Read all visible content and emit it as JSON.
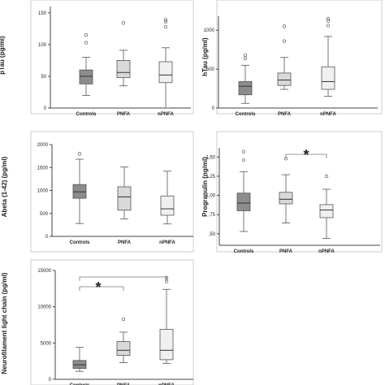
{
  "colors": {
    "frame": "#cccccc",
    "axis": "#444444",
    "whisker": "#555555",
    "box_stroke": "#555555",
    "box_fills": [
      "#8c8c8c",
      "#d9d9d9",
      "#f0f0f0"
    ],
    "bracket": "#777777"
  },
  "chart_data": [
    {
      "type": "box",
      "ylabel": "pTau (pg/ml)",
      "categories": [
        "Controls",
        "PNFA",
        "nPNFA"
      ],
      "ylim": [
        0,
        160
      ],
      "yticks": [
        0,
        50,
        100,
        150
      ],
      "ytick_labels": [
        "0",
        "50",
        "100",
        "150"
      ],
      "boxes": [
        {
          "whisker_low": 20,
          "q1": 38,
          "median": 50,
          "q3": 60,
          "whisker_high": 80,
          "outliers": [
            103,
            115
          ]
        },
        {
          "whisker_low": 35,
          "q1": 48,
          "median": 56,
          "q3": 75,
          "whisker_high": 91,
          "outliers": [
            134
          ]
        },
        {
          "whisker_low": 0,
          "q1": 40,
          "median": 52,
          "q3": 73,
          "whisker_high": 95,
          "outliers": [
            128,
            136,
            139
          ]
        }
      ]
    },
    {
      "type": "box",
      "ylabel": "hTau (pg/ml)",
      "categories": [
        "Controls",
        "PNFA",
        "nPNFA"
      ],
      "ylim": [
        0,
        1180
      ],
      "yticks": [
        0,
        500,
        1000
      ],
      "ytick_labels": [
        "0",
        "500",
        "1000"
      ],
      "boxes": [
        {
          "whisker_low": 60,
          "q1": 170,
          "median": 280,
          "q3": 340,
          "whisker_high": 550,
          "outliers": [
            640,
            680
          ]
        },
        {
          "whisker_low": 240,
          "q1": 290,
          "median": 360,
          "q3": 450,
          "whisker_high": 650,
          "outliers": [
            860,
            1050
          ]
        },
        {
          "whisker_low": 150,
          "q1": 240,
          "median": 340,
          "q3": 530,
          "whisker_high": 920,
          "outliers": [
            1060,
            1120,
            1150
          ]
        }
      ]
    },
    {
      "type": "box",
      "ylabel": "Abeta (1-42) (pg/ml)",
      "categories": [
        "Controls",
        "PNFA",
        "nPNFA"
      ],
      "ylim": [
        0,
        2000
      ],
      "yticks": [
        0,
        500,
        1000,
        1500,
        2000
      ],
      "ytick_labels": [
        "0",
        "500",
        "1000",
        "1500",
        "2000"
      ],
      "boxes": [
        {
          "whisker_low": 280,
          "q1": 830,
          "median": 970,
          "q3": 1130,
          "whisker_high": 1680,
          "outliers": [
            1800
          ]
        },
        {
          "whisker_low": 380,
          "q1": 570,
          "median": 860,
          "q3": 1080,
          "whisker_high": 1510,
          "outliers": []
        },
        {
          "whisker_low": 270,
          "q1": 460,
          "median": 600,
          "q3": 880,
          "whisker_high": 1420,
          "outliers": []
        }
      ]
    },
    {
      "type": "box",
      "ylabel": "Progranulin (ng/ml)",
      "categories": [
        "Controls",
        "PNFA",
        "nPNFA"
      ],
      "ylim": [
        0.35,
        1.62
      ],
      "yticks": [
        0.5,
        0.75,
        1.0,
        1.25,
        1.5
      ],
      "ytick_labels": [
        ",50",
        ",75",
        "1,00",
        "1,25",
        "1,50"
      ],
      "boxes": [
        {
          "whisker_low": 0.53,
          "q1": 0.8,
          "median": 0.9,
          "q3": 1.03,
          "whisker_high": 1.31,
          "outliers": [
            1.46,
            1.57
          ]
        },
        {
          "whisker_low": 0.64,
          "q1": 0.89,
          "median": 0.95,
          "q3": 1.04,
          "whisker_high": 1.27,
          "outliers": [
            1.48
          ]
        },
        {
          "whisker_low": 0.44,
          "q1": 0.71,
          "median": 0.81,
          "q3": 0.88,
          "whisker_high": 1.08,
          "outliers": [
            1.25
          ]
        }
      ],
      "significance": [
        {
          "from": 1,
          "to": 2,
          "label": "*"
        }
      ]
    },
    {
      "type": "box",
      "ylabel": "Neurofilament light chain (pg/ml)",
      "categories": [
        "Controls",
        "PNFA",
        "nPNFA"
      ],
      "ylim": [
        0,
        15000
      ],
      "yticks": [
        0,
        5000,
        10000,
        15000
      ],
      "ytick_labels": [
        "0",
        "5000",
        "10000",
        "15000"
      ],
      "boxes": [
        {
          "whisker_low": 1100,
          "q1": 1500,
          "median": 2000,
          "q3": 2600,
          "whisker_high": 4400,
          "outliers": []
        },
        {
          "whisker_low": 2300,
          "q1": 3300,
          "median": 4000,
          "q3": 5200,
          "whisker_high": 6500,
          "outliers": [
            8300
          ]
        },
        {
          "whisker_low": 2200,
          "q1": 2700,
          "median": 4000,
          "q3": 6900,
          "whisker_high": 12400,
          "outliers": [
            13500,
            14000
          ]
        }
      ],
      "significance": [
        {
          "from": 0,
          "to": 1,
          "label": "*"
        },
        {
          "from": 0,
          "to": 2,
          "label": ""
        }
      ]
    }
  ]
}
